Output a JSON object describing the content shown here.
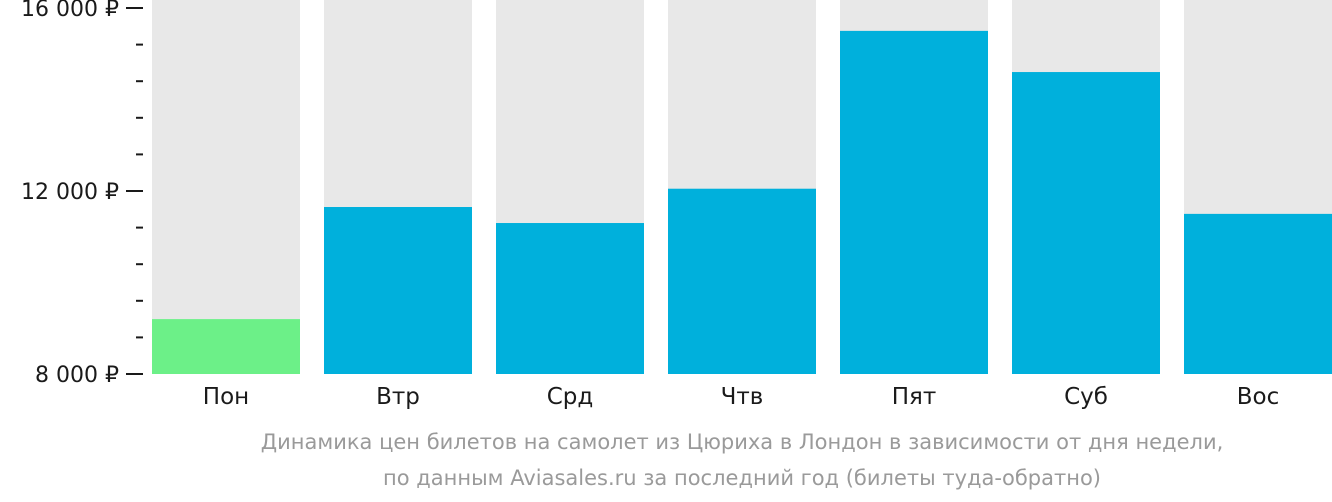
{
  "chart_data": {
    "type": "bar",
    "categories": [
      "Пон",
      "Втр",
      "Срд",
      "Чтв",
      "Пят",
      "Суб",
      "Вос"
    ],
    "values": [
      9200,
      11650,
      11300,
      12050,
      15500,
      14600,
      11500
    ],
    "highlight_index": 0,
    "ylim": [
      8000,
      16000
    ],
    "yticks": [
      {
        "value": 16000,
        "label": "16 000 ₽"
      },
      {
        "value": 12000,
        "label": "12 000 ₽"
      },
      {
        "value": 8000,
        "label": "8 000 ₽"
      }
    ],
    "minor_tick_step": 800,
    "colors": {
      "bar": "#00b0dc",
      "highlight": "#6cf088",
      "track": "#e8e8e8",
      "axis_text": "#1a1a1a",
      "caption": "#9a9a9a"
    },
    "caption": [
      "Динамика цен билетов на самолет из Цюриха в Лондон в зависимости от дня недели,",
      "по данным Aviasales.ru за последний год (билеты туда-обратно)"
    ]
  }
}
